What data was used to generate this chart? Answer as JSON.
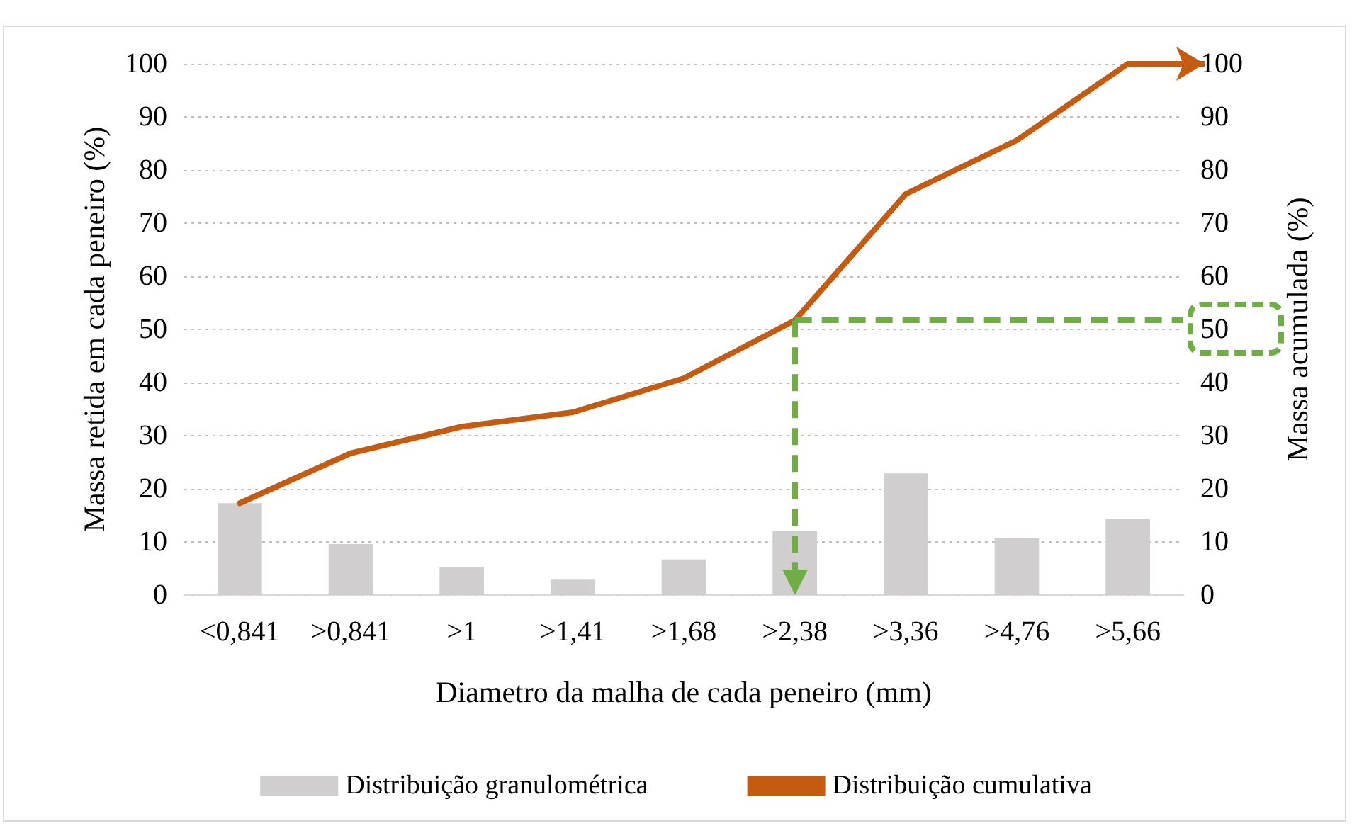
{
  "chart_data": {
    "type": "bar",
    "xlabel": "Diametro da malha de cada peneiro (mm)",
    "ylabel": "Massa retida em cada peneiro (%)",
    "y2label": "Massa acumulada (%)",
    "categories": [
      "<0,841",
      ">0,841",
      ">1",
      ">1,41",
      ">1,68",
      ">2,38",
      ">3,36",
      ">4,76",
      ">5,66"
    ],
    "series": [
      {
        "name": "Distribuição granulométrica",
        "color": "#d0cece",
        "values": [
          17.3,
          9.6,
          5.3,
          2.9,
          6.7,
          12,
          22.9,
          10.7,
          14.4
        ]
      },
      {
        "name": "Distribuição cumulativa",
        "type": "line",
        "axis": "y2",
        "color": "#c55a11",
        "marker": "none",
        "line_style": "solid",
        "values": [
          17.3,
          26.7,
          31.7,
          34.4,
          40.8,
          51.7,
          75.5,
          85.6,
          100
        ]
      }
    ],
    "ylim": [
      0,
      100
    ],
    "yticks": [
      0,
      10,
      20,
      30,
      40,
      50,
      60,
      70,
      80,
      90,
      100
    ],
    "y2lim": [
      0,
      100
    ],
    "y2ticks": [
      0,
      10,
      20,
      30,
      40,
      50,
      60,
      70,
      80,
      90,
      100
    ],
    "ref_lines": [
      {
        "axis": "y2",
        "value": 51.7,
        "color": "#70ad47",
        "line_style": "dashed"
      },
      {
        "axis": "x",
        "value": ">2,38",
        "color": "#70ad47",
        "line_style": "dashed"
      }
    ],
    "grid": "y",
    "legend": "bottom"
  }
}
